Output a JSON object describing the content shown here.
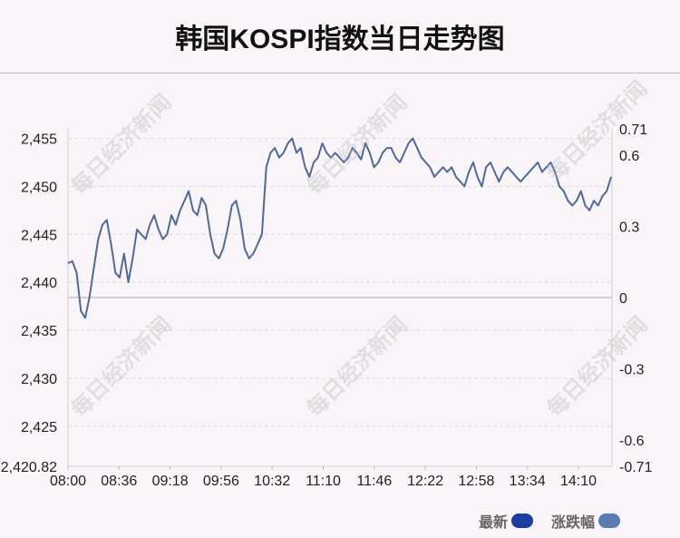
{
  "title": "韩国KOSPI指数当日走势图",
  "watermark": "每日经济新闻",
  "legend": [
    {
      "label": "最新",
      "color": "#1b3fa0"
    },
    {
      "label": "涨跌幅",
      "color": "#5b7bb0"
    }
  ],
  "chart_data": {
    "type": "line",
    "x_ticks": [
      "08:00",
      "08:36",
      "09:18",
      "09:56",
      "10:32",
      "11:10",
      "11:46",
      "12:22",
      "12:58",
      "13:34",
      "14:10"
    ],
    "y_left_ticks": [
      "2,455",
      "2,450",
      "2,445",
      "2,440",
      "2,435",
      "2,430",
      "2,425",
      "2,420.82"
    ],
    "y_right_ticks": [
      "0.71",
      "0.6",
      "0.3",
      "0",
      "-0.3",
      "-0.6",
      "-0.71"
    ],
    "ylim_left": [
      2420.82,
      2456.0
    ],
    "ylim_right": [
      -0.71,
      0.71
    ],
    "baseline": 2438.7,
    "series": [
      {
        "values": [
          2442.0,
          2442.2,
          2441.0,
          2437.0,
          2436.3,
          2438.5,
          2441.5,
          2444.5,
          2446.0,
          2446.5,
          2444.0,
          2441.0,
          2440.5,
          2443.0,
          2440.0,
          2442.5,
          2445.5,
          2445.0,
          2444.5,
          2446.0,
          2447.0,
          2445.5,
          2444.5,
          2445.0,
          2447.0,
          2446.0,
          2447.5,
          2448.5,
          2449.5,
          2447.5,
          2447.0,
          2448.8,
          2448.0,
          2445.0,
          2443.0,
          2442.5,
          2443.5,
          2445.5,
          2448.0,
          2448.5,
          2446.5,
          2443.5,
          2442.5,
          2443.0,
          2444.0,
          2445.0,
          2452.0,
          2453.5,
          2454.0,
          2453.0,
          2453.5,
          2454.5,
          2455.0,
          2453.5,
          2454.0,
          2452.0,
          2451.0,
          2452.5,
          2453.0,
          2454.5,
          2453.5,
          2453.0,
          2453.5,
          2453.0,
          2452.5,
          2453.0,
          2454.0,
          2453.5,
          2452.8,
          2454.5,
          2453.5,
          2452.0,
          2452.5,
          2453.5,
          2454.0,
          2454.0,
          2453.0,
          2452.5,
          2453.5,
          2454.5,
          2455.0,
          2454.0,
          2453.0,
          2452.5,
          2452.0,
          2451.0,
          2451.5,
          2452.0,
          2451.5,
          2452.0,
          2451.0,
          2450.5,
          2450.0,
          2451.5,
          2452.5,
          2451.0,
          2450.0,
          2452.0,
          2452.5,
          2451.5,
          2450.5,
          2451.5,
          2452.0,
          2451.5,
          2451.0,
          2450.5,
          2451.0,
          2451.5,
          2452.0,
          2452.5,
          2451.5,
          2452.0,
          2452.5,
          2451.5,
          2450.0,
          2449.5,
          2448.5,
          2448.0,
          2448.5,
          2449.5,
          2448.0,
          2447.5,
          2448.5,
          2448.0,
          2449.0,
          2449.5,
          2451.0
        ]
      }
    ],
    "xlabel": "",
    "ylabel": "",
    "grid": "horizontal dashed"
  }
}
